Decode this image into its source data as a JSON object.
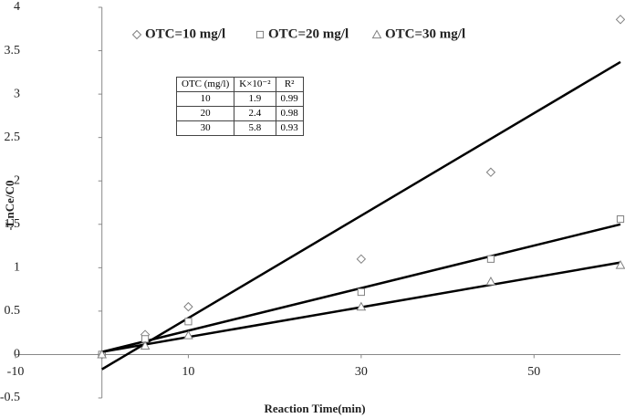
{
  "chart_data": {
    "type": "scatter",
    "x_label": "Reaction Time(min)",
    "y_label": "-LnCe/C0",
    "x": [
      0,
      5,
      10,
      30,
      45,
      60
    ],
    "series": [
      {
        "name": "OTC=10 mg/l",
        "color": "#808080",
        "marker": "diamond",
        "values": [
          0,
          0.23,
          0.55,
          1.1,
          2.1,
          3.86
        ],
        "trendline": {
          "x": [
            0,
            60
          ],
          "values": [
            -0.17,
            3.37
          ],
          "color": "#000000"
        }
      },
      {
        "name": "OTC=20 mg/l",
        "color": "#808080",
        "marker": "square",
        "values": [
          0,
          0.18,
          0.38,
          0.72,
          1.1,
          1.56
        ],
        "trendline": {
          "x": [
            0,
            60
          ],
          "values": [
            0.03,
            1.5
          ],
          "color": "#000000"
        }
      },
      {
        "name": "OTC=30 mg/l",
        "color": "#808080",
        "marker": "triangle",
        "values": [
          0,
          0.1,
          0.22,
          0.55,
          0.84,
          1.03
        ],
        "trendline": {
          "x": [
            0,
            60
          ],
          "values": [
            0.03,
            1.06
          ],
          "color": "#000000"
        }
      }
    ],
    "xlim": [
      -10,
      60
    ],
    "xticks": [
      -10,
      10,
      30,
      50
    ],
    "ylim": [
      -0.5,
      4
    ],
    "yticks": [
      -0.5,
      0,
      0.5,
      1,
      1.5,
      2,
      2.5,
      3,
      3.5,
      4
    ],
    "grid": false,
    "legend": "top",
    "table": {
      "header": [
        "OTC (mg/l)",
        "K×10⁻²",
        "R²"
      ],
      "rows": [
        [
          "10",
          "1.9",
          "0.99"
        ],
        [
          "20",
          "2.4",
          "0.98"
        ],
        [
          "30",
          "5.8",
          "0.93"
        ]
      ]
    }
  }
}
